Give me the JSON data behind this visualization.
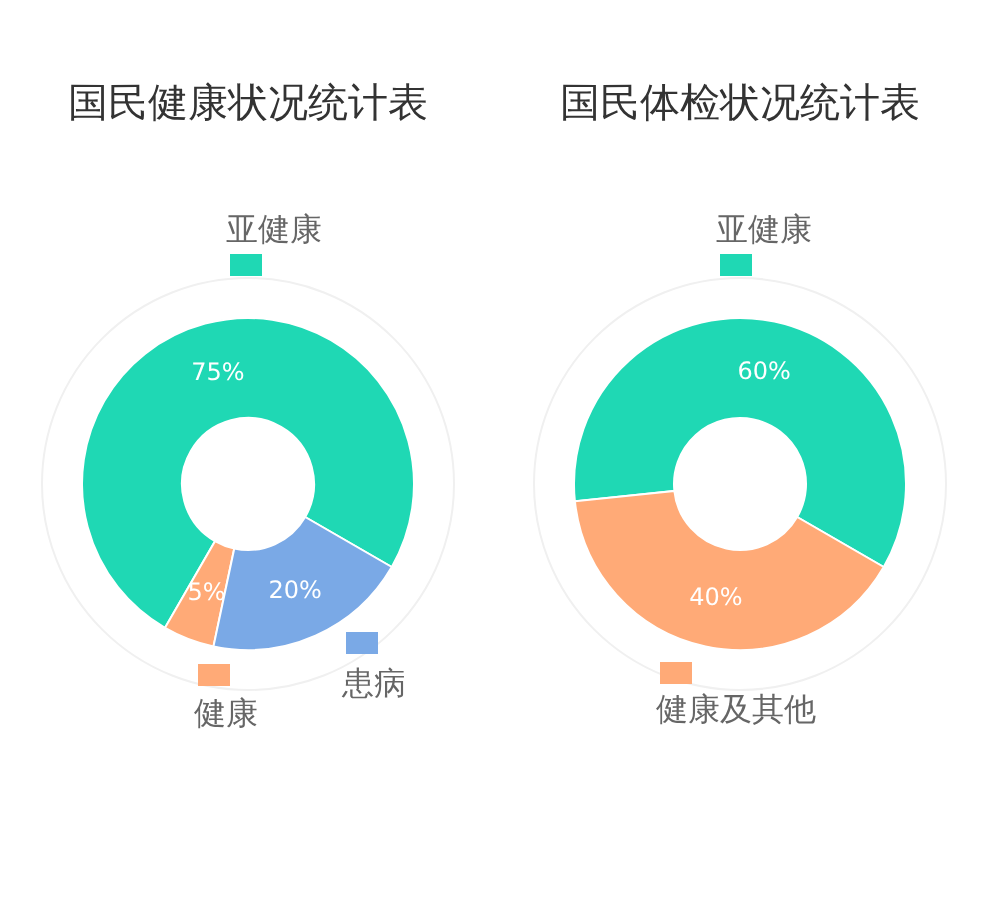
{
  "chart_data": [
    {
      "type": "donut",
      "title": "国民健康状况统计表",
      "categories": [
        "亚健康",
        "健康",
        "患病"
      ],
      "values": [
        75,
        5,
        20
      ],
      "colors": [
        "#1fd8b4",
        "#ffaa77",
        "#7aa9e6"
      ],
      "value_labels": [
        "75%",
        "5%",
        "20%"
      ],
      "legend": "bottom"
    },
    {
      "type": "donut",
      "title": "国民体检状况统计表",
      "categories": [
        "亚健康",
        "健康及其他"
      ],
      "values": [
        60,
        40
      ],
      "colors": [
        "#1fd8b4",
        "#ffaa77"
      ],
      "value_labels": [
        "60%",
        "40%"
      ],
      "legend": "bottom"
    }
  ]
}
